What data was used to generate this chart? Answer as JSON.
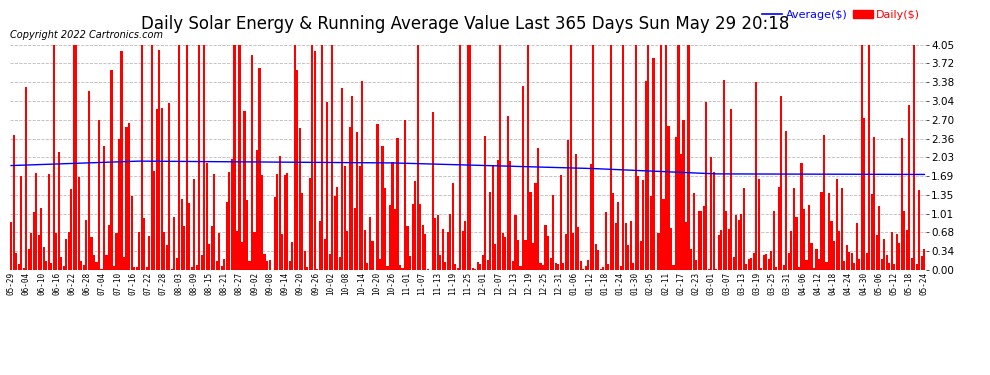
{
  "title": "Daily Solar Energy & Running Average Value Last 365 Days Sun May 29 20:18",
  "copyright": "Copyright 2022 Cartronics.com",
  "legend_avg": "Average($)",
  "legend_daily": "Daily($)",
  "yticks": [
    0.0,
    0.34,
    0.68,
    1.01,
    1.35,
    1.69,
    2.03,
    2.36,
    2.7,
    3.04,
    3.38,
    3.72,
    4.05
  ],
  "ylim": [
    0.0,
    4.05
  ],
  "bar_color": "#ff0000",
  "avg_color": "#0000ff",
  "background_color": "#ffffff",
  "grid_color": "#bbbbbb",
  "title_fontsize": 12,
  "copyright_fontsize": 7,
  "xtick_fontsize": 5.5,
  "ytick_fontsize": 7.5,
  "x_labels": [
    "05-29",
    "06-04",
    "06-10",
    "06-16",
    "06-22",
    "06-28",
    "07-04",
    "07-10",
    "07-16",
    "07-22",
    "07-28",
    "08-03",
    "08-09",
    "08-15",
    "08-21",
    "08-27",
    "09-02",
    "09-08",
    "09-14",
    "09-20",
    "09-26",
    "10-02",
    "10-08",
    "10-14",
    "10-20",
    "10-26",
    "11-01",
    "11-07",
    "11-13",
    "11-19",
    "11-25",
    "12-01",
    "12-07",
    "12-13",
    "12-19",
    "12-25",
    "12-31",
    "01-06",
    "01-12",
    "01-18",
    "01-24",
    "01-30",
    "02-05",
    "02-11",
    "02-17",
    "02-23",
    "03-01",
    "03-07",
    "03-13",
    "03-19",
    "03-25",
    "03-31",
    "04-06",
    "04-12",
    "04-18",
    "04-24",
    "04-30",
    "05-06",
    "05-12",
    "05-18",
    "05-24"
  ],
  "n_bars": 365,
  "avg_breakpoints": [
    0,
    50,
    150,
    230,
    280,
    365
  ],
  "avg_values": [
    1.88,
    1.96,
    1.93,
    1.83,
    1.73,
    1.72
  ],
  "seed": 42
}
